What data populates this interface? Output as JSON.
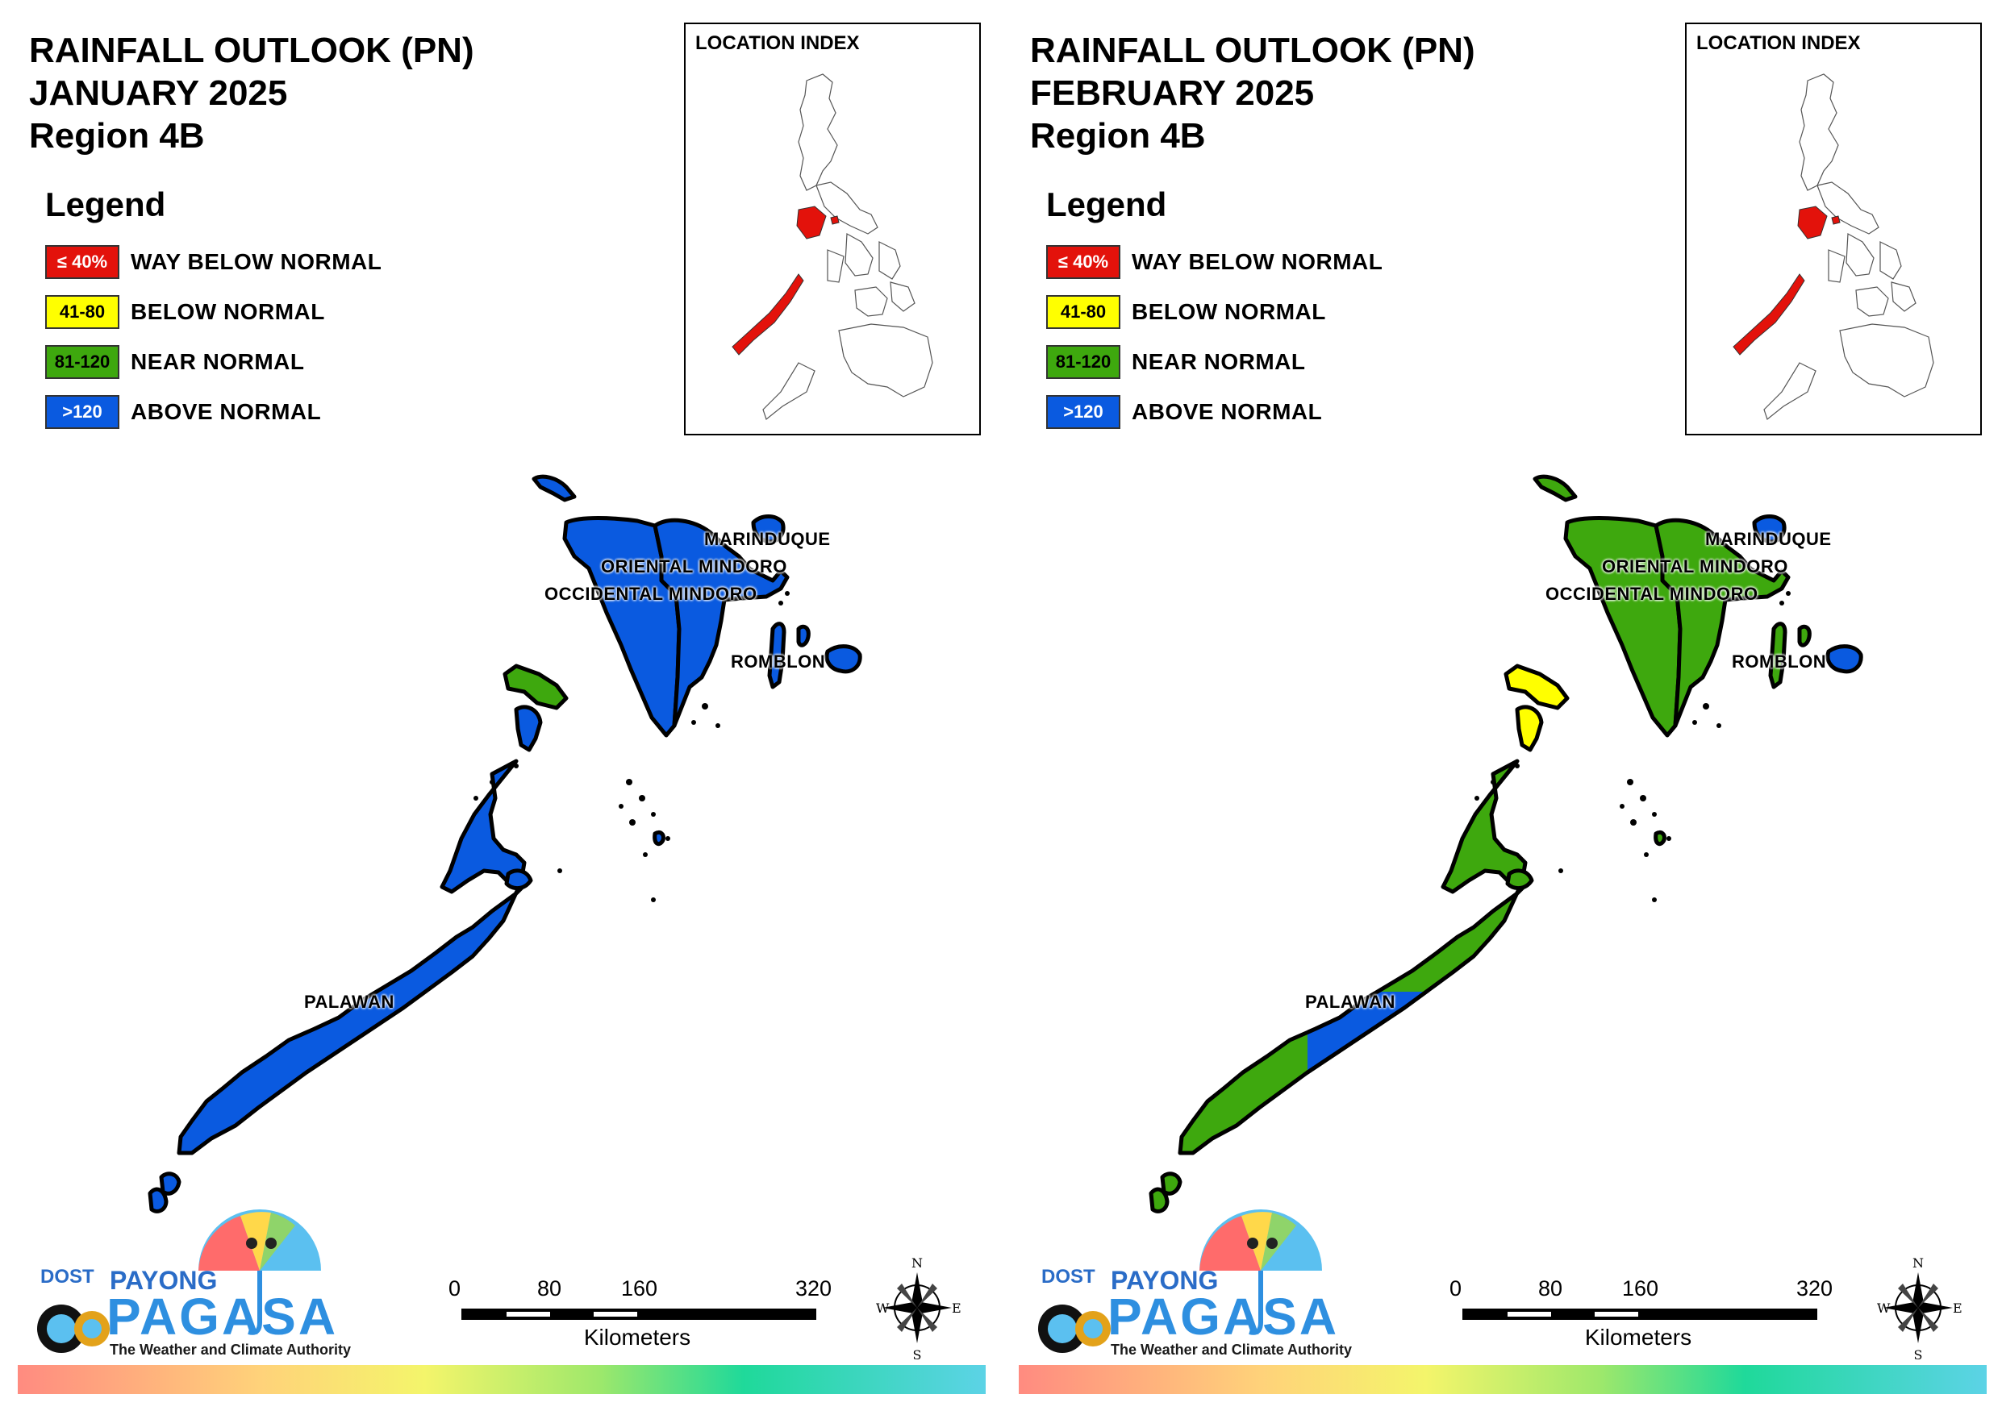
{
  "panels": [
    {
      "title_line1": "RAINFALL OUTLOOK (PN)",
      "title_line2": "JANUARY 2025",
      "title_line3": "Region 4B",
      "index_title": "LOCATION INDEX",
      "provinces": {
        "marinduque": "MARINDUQUE",
        "oriental_mindoro": "ORIENTAL MINDORO",
        "occidental_mindoro": "OCCIDENTAL MINDORO",
        "romblon": "ROMBLON",
        "palawan": "PALAWAN"
      },
      "province_categories": {
        "occidental_mindoro": "ABOVE NORMAL",
        "oriental_mindoro": "ABOVE NORMAL",
        "marinduque": "ABOVE NORMAL",
        "romblon": "ABOVE NORMAL",
        "palawan_north_tip": "NEAR NORMAL",
        "palawan_mainland": "ABOVE NORMAL"
      }
    },
    {
      "title_line1": "RAINFALL OUTLOOK (PN)",
      "title_line2": "FEBRUARY 2025",
      "title_line3": "Region 4B",
      "index_title": "LOCATION INDEX",
      "provinces": {
        "marinduque": "MARINDUQUE",
        "oriental_mindoro": "ORIENTAL MINDORO",
        "occidental_mindoro": "OCCIDENTAL MINDORO",
        "romblon": "ROMBLON",
        "palawan": "PALAWAN"
      },
      "province_categories": {
        "occidental_mindoro": "NEAR NORMAL",
        "oriental_mindoro": "NEAR NORMAL",
        "marinduque": "ABOVE NORMAL",
        "romblon": "NEAR NORMAL",
        "palawan_north_tip": "BELOW NORMAL",
        "palawan_mainland": "NEAR NORMAL",
        "palawan_central": "ABOVE NORMAL"
      }
    }
  ],
  "legend": {
    "title": "Legend",
    "items": [
      {
        "range": "≤ 40%",
        "label": "WAY BELOW NORMAL",
        "color": "#e3120b",
        "text_color": "#ffffff"
      },
      {
        "range": "41-80",
        "label": "BELOW NORMAL",
        "color": "#ffff00",
        "text_color": "#000000"
      },
      {
        "range": "81-120",
        "label": "NEAR NORMAL",
        "color": "#3ea80e",
        "text_color": "#000000"
      },
      {
        "range": ">120",
        "label": "ABOVE NORMAL",
        "color": "#0a5ae0",
        "text_color": "#ffffff"
      }
    ]
  },
  "scale_bar": {
    "ticks": [
      "0",
      "80",
      "160",
      "320"
    ],
    "unit": "Kilometers"
  },
  "compass": {
    "n": "N",
    "s": "S",
    "e": "E",
    "w": "W"
  },
  "logo": {
    "dost": "DOST",
    "payong": "PAYONG",
    "pagasa": "PAGASA",
    "tagline": "The Weather and Climate Authority"
  },
  "colors": {
    "above_normal": "#0a5ae0",
    "near_normal": "#3ea80e",
    "below_normal": "#ffff00",
    "way_below_normal": "#e3120b"
  }
}
